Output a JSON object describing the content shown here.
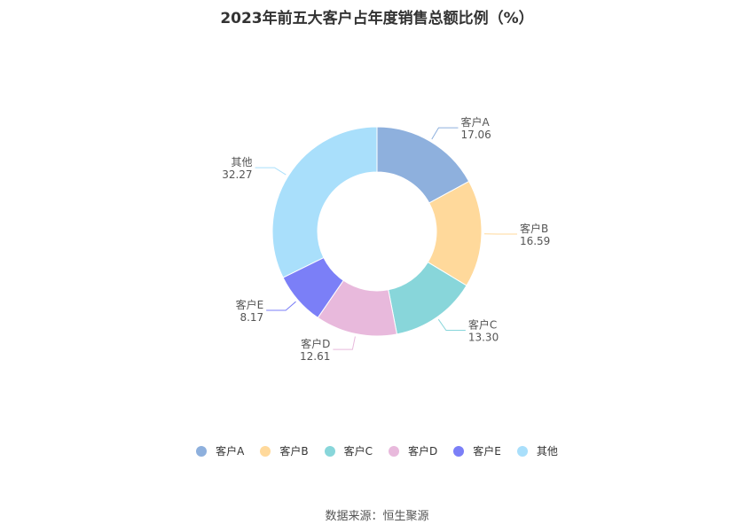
{
  "chart_data": {
    "type": "pie",
    "title": "2023年前五大客户占年度销售总额比例（%）",
    "donut": true,
    "slices": [
      {
        "label": "客户A",
        "value": 17.06,
        "value_label": "17.06",
        "color": "#8eb0dd"
      },
      {
        "label": "客户B",
        "value": 16.59,
        "value_label": "16.59",
        "color": "#ffd99b"
      },
      {
        "label": "客户C",
        "value": 13.3,
        "value_label": "13.30",
        "color": "#88d6da"
      },
      {
        "label": "客户D",
        "value": 12.61,
        "value_label": "12.61",
        "color": "#e8b9dc"
      },
      {
        "label": "客户E",
        "value": 8.17,
        "value_label": "8.17",
        "color": "#7b7ff7"
      },
      {
        "label": "其他",
        "value": 32.27,
        "value_label": "32.27",
        "color": "#a9dffb"
      }
    ],
    "legend_position": "bottom"
  },
  "source": "数据来源：恒生聚源"
}
